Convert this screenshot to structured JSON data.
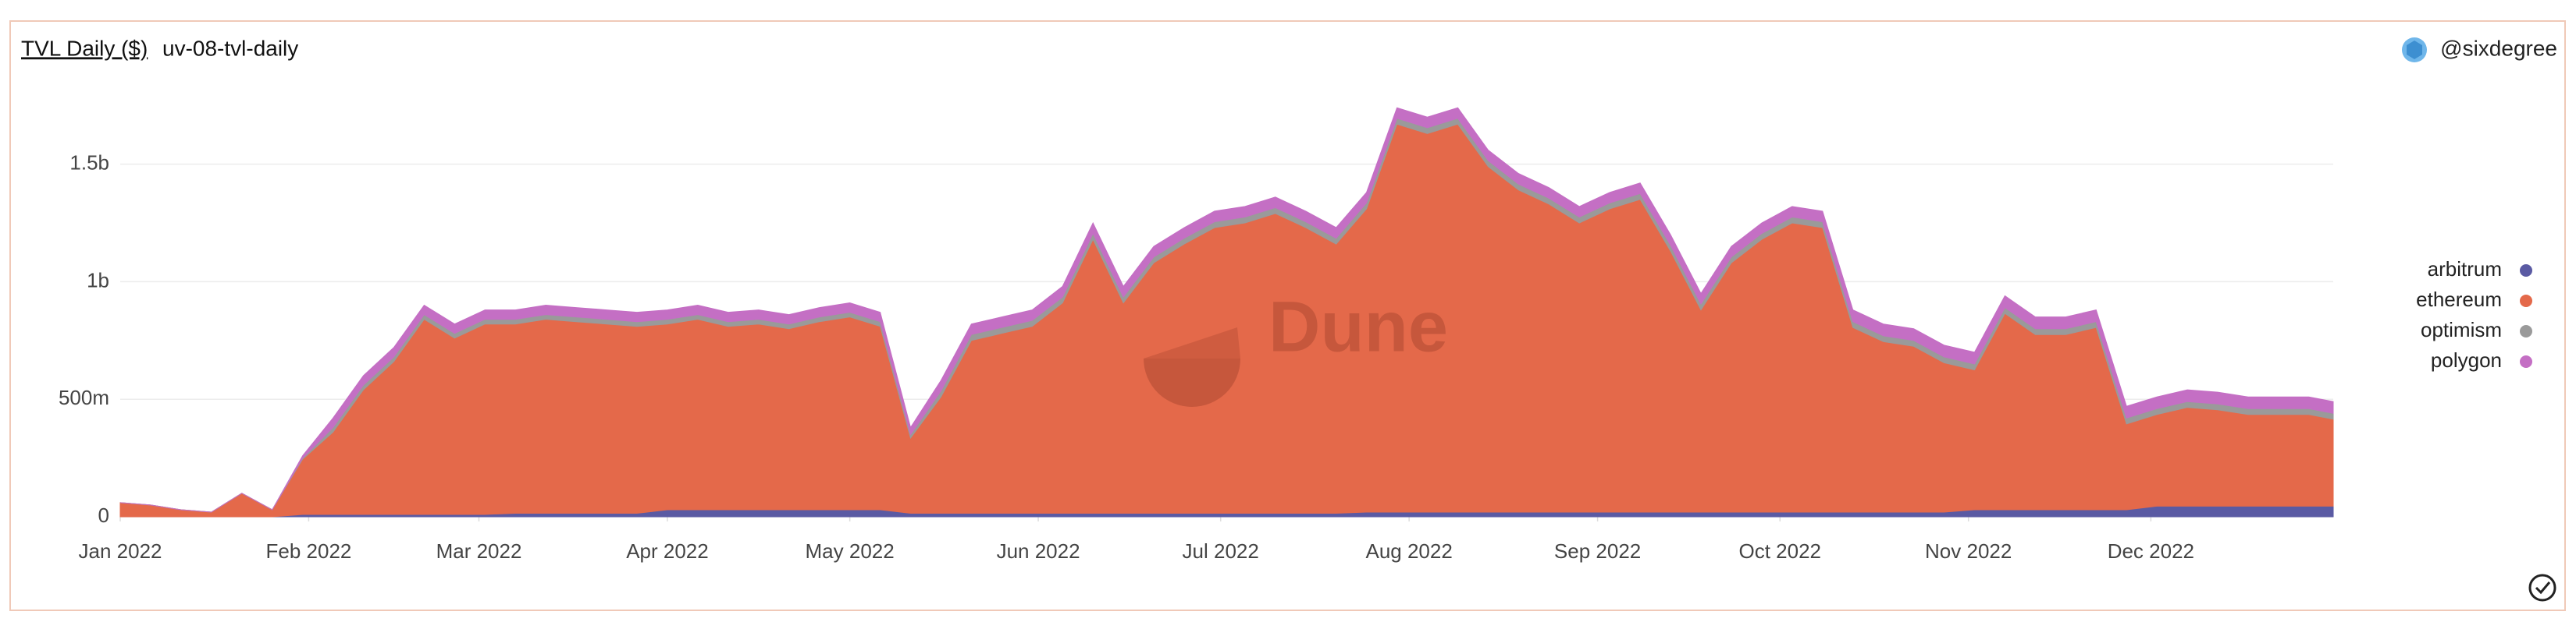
{
  "chart_data": {
    "type": "stacked_area",
    "title": "TVL Daily ($)",
    "subtitle": "uv-08-tvl-daily",
    "author": "@sixdegree",
    "watermark": "Dune",
    "x": [
      0,
      5,
      10,
      15,
      20,
      25,
      30,
      35,
      40,
      45,
      50,
      55,
      60,
      65,
      70,
      75,
      80,
      85,
      90,
      95,
      100,
      105,
      110,
      115,
      120,
      125,
      130,
      135,
      140,
      145,
      150,
      155,
      160,
      165,
      170,
      175,
      180,
      185,
      190,
      195,
      200,
      205,
      210,
      215,
      220,
      225,
      230,
      235,
      240,
      245,
      250,
      255,
      260,
      265,
      270,
      275,
      280,
      285,
      290,
      295,
      300,
      305,
      310,
      315,
      320,
      325,
      330,
      335,
      340,
      345,
      350,
      355,
      360,
      364
    ],
    "xlim": [
      0,
      364
    ],
    "xticks": [
      {
        "value": 0,
        "label": "Jan 2022"
      },
      {
        "value": 31,
        "label": "Feb 2022"
      },
      {
        "value": 59,
        "label": "Mar 2022"
      },
      {
        "value": 90,
        "label": "Apr 2022"
      },
      {
        "value": 120,
        "label": "May 2022"
      },
      {
        "value": 151,
        "label": "Jun 2022"
      },
      {
        "value": 181,
        "label": "Jul 2022"
      },
      {
        "value": 212,
        "label": "Aug 2022"
      },
      {
        "value": 243,
        "label": "Sep 2022"
      },
      {
        "value": 273,
        "label": "Oct 2022"
      },
      {
        "value": 304,
        "label": "Nov 2022"
      },
      {
        "value": 334,
        "label": "Dec 2022"
      }
    ],
    "ylim": [
      0,
      1850000000
    ],
    "yticks": [
      0,
      {
        "value": 500000000,
        "label": "500m"
      },
      {
        "value": 1000000000,
        "label": "1b"
      },
      {
        "value": 1500000000,
        "label": "1.5b"
      }
    ],
    "grid": true,
    "legend": "right",
    "series": [
      {
        "name": "arbitrum",
        "color": "#5a5aa3",
        "values": [
          0,
          0,
          0,
          0,
          0,
          0,
          10000000,
          10000000,
          10000000,
          10000000,
          10000000,
          10000000,
          10000000,
          15000000,
          15000000,
          15000000,
          15000000,
          15000000,
          30000000,
          30000000,
          30000000,
          30000000,
          30000000,
          30000000,
          30000000,
          30000000,
          15000000,
          15000000,
          15000000,
          15000000,
          15000000,
          15000000,
          15000000,
          15000000,
          15000000,
          15000000,
          15000000,
          15000000,
          15000000,
          15000000,
          15000000,
          20000000,
          20000000,
          20000000,
          20000000,
          20000000,
          20000000,
          20000000,
          20000000,
          20000000,
          20000000,
          20000000,
          20000000,
          20000000,
          20000000,
          20000000,
          20000000,
          20000000,
          20000000,
          20000000,
          20000000,
          30000000,
          30000000,
          30000000,
          30000000,
          30000000,
          30000000,
          45000000,
          45000000,
          45000000,
          45000000,
          45000000,
          45000000,
          45000000
        ]
      },
      {
        "name": "ethereum",
        "color": "#e4694a",
        "values": [
          60000000,
          50000000,
          30000000,
          20000000,
          100000000,
          30000000,
          235000000,
          350000000,
          530000000,
          650000000,
          830000000,
          750000000,
          810000000,
          805000000,
          825000000,
          815000000,
          805000000,
          795000000,
          790000000,
          810000000,
          780000000,
          790000000,
          770000000,
          800000000,
          820000000,
          780000000,
          320000000,
          495000000,
          735000000,
          765000000,
          795000000,
          895000000,
          1165000000,
          895000000,
          1065000000,
          1145000000,
          1215000000,
          1235000000,
          1275000000,
          1215000000,
          1145000000,
          1290000000,
          1650000000,
          1610000000,
          1650000000,
          1470000000,
          1370000000,
          1310000000,
          1230000000,
          1290000000,
          1330000000,
          1110000000,
          860000000,
          1060000000,
          1160000000,
          1230000000,
          1210000000,
          785000000,
          725000000,
          705000000,
          635000000,
          595000000,
          835000000,
          745000000,
          745000000,
          775000000,
          365000000,
          390000000,
          420000000,
          410000000,
          390000000,
          390000000,
          390000000,
          370000000
        ]
      },
      {
        "name": "optimism",
        "color": "#9a9a9a",
        "values": [
          0,
          0,
          0,
          0,
          0,
          0,
          5000000,
          20000000,
          20000000,
          20000000,
          20000000,
          20000000,
          20000000,
          20000000,
          20000000,
          20000000,
          20000000,
          20000000,
          20000000,
          20000000,
          20000000,
          20000000,
          20000000,
          20000000,
          20000000,
          20000000,
          15000000,
          25000000,
          25000000,
          25000000,
          25000000,
          25000000,
          25000000,
          25000000,
          25000000,
          25000000,
          25000000,
          25000000,
          25000000,
          25000000,
          25000000,
          25000000,
          25000000,
          25000000,
          25000000,
          25000000,
          25000000,
          25000000,
          25000000,
          25000000,
          25000000,
          25000000,
          25000000,
          25000000,
          25000000,
          25000000,
          25000000,
          25000000,
          25000000,
          25000000,
          25000000,
          25000000,
          25000000,
          25000000,
          25000000,
          25000000,
          25000000,
          25000000,
          25000000,
          25000000,
          25000000,
          25000000,
          25000000,
          25000000
        ]
      },
      {
        "name": "polygon",
        "color": "#c46fc4",
        "values": [
          0,
          0,
          0,
          0,
          0,
          0,
          10000000,
          40000000,
          40000000,
          40000000,
          40000000,
          40000000,
          40000000,
          40000000,
          40000000,
          40000000,
          40000000,
          40000000,
          40000000,
          40000000,
          40000000,
          40000000,
          40000000,
          40000000,
          40000000,
          40000000,
          30000000,
          45000000,
          45000000,
          45000000,
          45000000,
          45000000,
          45000000,
          45000000,
          45000000,
          45000000,
          45000000,
          45000000,
          45000000,
          45000000,
          45000000,
          45000000,
          45000000,
          45000000,
          45000000,
          45000000,
          45000000,
          45000000,
          45000000,
          45000000,
          45000000,
          45000000,
          45000000,
          45000000,
          45000000,
          45000000,
          45000000,
          50000000,
          50000000,
          50000000,
          50000000,
          50000000,
          50000000,
          50000000,
          50000000,
          50000000,
          50000000,
          50000000,
          50000000,
          50000000,
          50000000,
          50000000,
          50000000,
          50000000
        ]
      }
    ]
  }
}
